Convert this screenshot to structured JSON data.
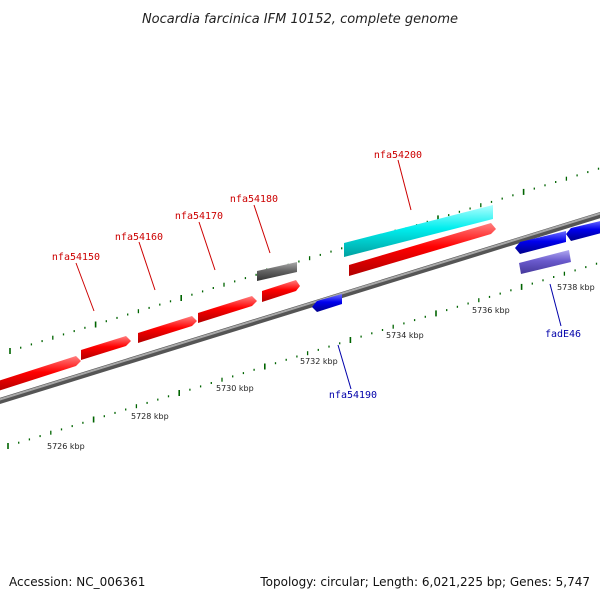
{
  "title": "Nocardia farcinica IFM 10152, complete genome",
  "accession": "Accession: NC_006361",
  "topology": "Topology: circular; Length: 6,021,225 bp; Genes: 5,747",
  "colors": {
    "forward_gene": "#ff0000",
    "reverse_gene": "#0000ee",
    "rna_gene": "#00eeee",
    "other_gene": "#666666",
    "pseudo_gene": "#6a5acd",
    "forward_label": "#cc0000",
    "reverse_label": "#0000aa",
    "tick": "#006400"
  },
  "scale_labels": [
    "5726 kbp",
    "5728 kbp",
    "5730 kbp",
    "5732 kbp",
    "5734 kbp",
    "5736 kbp",
    "5738 kbp"
  ],
  "gene_labels": [
    {
      "text": "nfa54150",
      "strand": "forward"
    },
    {
      "text": "nfa54160",
      "strand": "forward"
    },
    {
      "text": "nfa54170",
      "strand": "forward"
    },
    {
      "text": "nfa54180",
      "strand": "forward"
    },
    {
      "text": "nfa54200",
      "strand": "forward"
    },
    {
      "text": "nfa54190",
      "strand": "reverse"
    },
    {
      "text": "fadE46",
      "strand": "reverse"
    }
  ]
}
